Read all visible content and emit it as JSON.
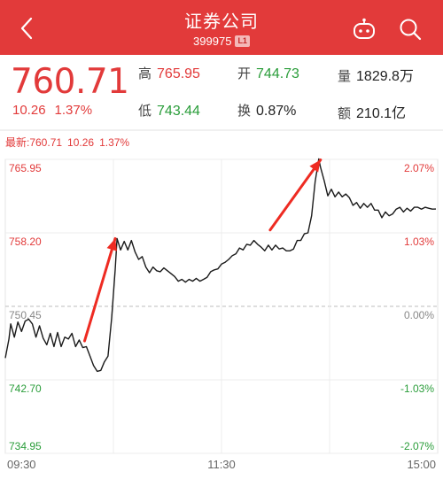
{
  "header": {
    "title": "证券公司",
    "code": "399975",
    "level_badge": "L1",
    "back_icon": "chevron-left-icon",
    "robot_icon": "robot-icon",
    "search_icon": "search-icon"
  },
  "quote": {
    "price": "760.71",
    "change": "10.26",
    "change_pct": "1.37%",
    "stats": [
      {
        "label": "高",
        "value": "765.95",
        "color": "red"
      },
      {
        "label": "开",
        "value": "744.73",
        "color": "green"
      },
      {
        "label": "量",
        "value": "1829.8万",
        "color": "dark"
      },
      {
        "label": "低",
        "value": "743.44",
        "color": "green"
      },
      {
        "label": "换",
        "value": "0.87%",
        "color": "dark"
      },
      {
        "label": "额",
        "value": "210.1亿",
        "color": "dark"
      }
    ]
  },
  "latest": {
    "label": "最新:760.71",
    "change": "10.26",
    "pct": "1.37%"
  },
  "colors": {
    "up": "#e23a3a",
    "down": "#2a9d3a",
    "header": "#e23a3a"
  },
  "chart_data": {
    "type": "line",
    "x_ticks": [
      "09:30",
      "11:30",
      "15:00"
    ],
    "y_left_ticks": [
      "765.95",
      "758.20",
      "750.45",
      "742.70",
      "734.95"
    ],
    "y_right_ticks": [
      "2.07%",
      "1.03%",
      "0.00%",
      "-1.03%",
      "-2.07%"
    ],
    "ylim": [
      734.95,
      765.95
    ],
    "baseline": 750.45,
    "minutes_total": 240,
    "series": [
      {
        "values": [
          [
            0,
            745.0
          ],
          [
            2,
            747.0
          ],
          [
            3,
            748.6
          ],
          [
            5,
            747.2
          ],
          [
            7,
            748.8
          ],
          [
            9,
            747.8
          ],
          [
            11,
            748.9
          ],
          [
            13,
            749.1
          ],
          [
            15,
            748.6
          ],
          [
            17,
            747.2
          ],
          [
            19,
            748.4
          ],
          [
            21,
            747.1
          ],
          [
            23,
            746.4
          ],
          [
            25,
            747.6
          ],
          [
            27,
            746.2
          ],
          [
            29,
            747.7
          ],
          [
            31,
            746.2
          ],
          [
            33,
            747.2
          ],
          [
            35,
            747.0
          ],
          [
            37,
            747.6
          ],
          [
            39,
            746.2
          ],
          [
            41,
            746.9
          ],
          [
            43,
            746.1
          ],
          [
            45,
            746.2
          ],
          [
            47,
            745.2
          ],
          [
            49,
            744.2
          ],
          [
            51,
            743.6
          ],
          [
            53,
            743.7
          ],
          [
            55,
            744.6
          ],
          [
            57,
            745.2
          ],
          [
            59,
            749.2
          ],
          [
            61,
            754.3
          ],
          [
            62,
            757.6
          ],
          [
            64,
            756.4
          ],
          [
            66,
            757.3
          ],
          [
            68,
            756.4
          ],
          [
            70,
            757.4
          ],
          [
            72,
            756.2
          ],
          [
            74,
            755.4
          ],
          [
            76,
            755.7
          ],
          [
            78,
            754.6
          ],
          [
            80,
            754.0
          ],
          [
            82,
            754.6
          ],
          [
            84,
            754.2
          ],
          [
            86,
            754.1
          ],
          [
            88,
            754.5
          ],
          [
            90,
            754.2
          ],
          [
            92,
            753.9
          ],
          [
            94,
            753.6
          ],
          [
            96,
            753.1
          ],
          [
            98,
            753.3
          ],
          [
            100,
            753.0
          ],
          [
            102,
            753.3
          ],
          [
            104,
            753.1
          ],
          [
            106,
            753.4
          ],
          [
            108,
            753.1
          ],
          [
            110,
            753.3
          ],
          [
            112,
            753.5
          ],
          [
            114,
            754.1
          ],
          [
            116,
            754.3
          ],
          [
            118,
            754.4
          ],
          [
            120,
            754.9
          ],
          [
            122,
            755.1
          ],
          [
            124,
            755.4
          ],
          [
            126,
            755.8
          ],
          [
            128,
            756.0
          ],
          [
            130,
            756.6
          ],
          [
            132,
            756.4
          ],
          [
            134,
            757.0
          ],
          [
            136,
            756.9
          ],
          [
            138,
            757.4
          ],
          [
            140,
            757.0
          ],
          [
            142,
            756.7
          ],
          [
            144,
            756.3
          ],
          [
            146,
            756.9
          ],
          [
            148,
            756.4
          ],
          [
            150,
            756.9
          ],
          [
            152,
            756.5
          ],
          [
            154,
            756.6
          ],
          [
            156,
            756.3
          ],
          [
            158,
            756.3
          ],
          [
            160,
            756.5
          ],
          [
            162,
            757.4
          ],
          [
            164,
            757.4
          ],
          [
            166,
            758.1
          ],
          [
            168,
            758.2
          ],
          [
            170,
            760.0
          ],
          [
            172,
            763.6
          ],
          [
            174,
            766.0
          ],
          [
            175,
            765.1
          ],
          [
            177,
            763.7
          ],
          [
            179,
            762.1
          ],
          [
            181,
            762.8
          ],
          [
            183,
            762.0
          ],
          [
            185,
            762.5
          ],
          [
            187,
            762.0
          ],
          [
            189,
            762.3
          ],
          [
            191,
            761.9
          ],
          [
            193,
            761.1
          ],
          [
            195,
            761.4
          ],
          [
            197,
            760.8
          ],
          [
            199,
            761.3
          ],
          [
            201,
            760.9
          ],
          [
            203,
            761.3
          ],
          [
            205,
            760.6
          ],
          [
            207,
            760.6
          ],
          [
            209,
            759.8
          ],
          [
            211,
            760.4
          ],
          [
            213,
            760.0
          ],
          [
            215,
            760.2
          ],
          [
            217,
            760.7
          ],
          [
            219,
            760.9
          ],
          [
            221,
            760.4
          ],
          [
            223,
            760.8
          ],
          [
            225,
            760.5
          ],
          [
            227,
            760.9
          ],
          [
            229,
            760.9
          ],
          [
            231,
            760.7
          ],
          [
            233,
            760.9
          ],
          [
            235,
            760.8
          ],
          [
            237,
            760.7
          ],
          [
            239,
            760.71
          ]
        ]
      }
    ],
    "annotations": [
      {
        "type": "arrow",
        "from": [
          44,
          746.8
        ],
        "to": [
          61,
          757.6
        ]
      },
      {
        "type": "arrow",
        "from": [
          147,
          758.5
        ],
        "to": [
          175,
          765.9
        ]
      }
    ]
  }
}
